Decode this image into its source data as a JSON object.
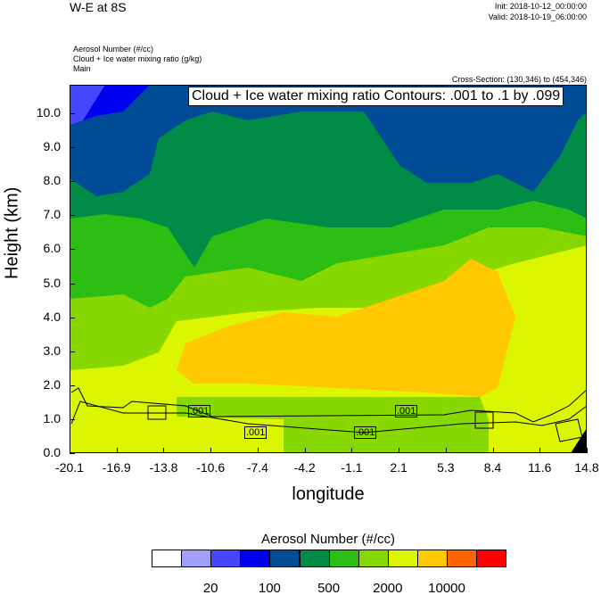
{
  "header": {
    "title": "W-E at 8S",
    "init": "Init: 2018-10-12_00:00:00",
    "valid": "Valid: 2018-10-19_06:00:00",
    "fields": [
      "Aerosol Number   (#/cc)",
      "Cloud + Ice water mixing ratio   (g/kg)",
      "Main"
    ],
    "cross_section": "Cross-Section: (130,346) to (454,346)"
  },
  "chart_data": {
    "type": "heatmap",
    "title": "W-E at 8S",
    "xlabel": "longitude",
    "ylabel": "Height (km)",
    "xlim": [
      -20.1,
      14.8
    ],
    "ylim": [
      0,
      10.8
    ],
    "x_ticks": [
      "-20.1",
      "-16.9",
      "-13.8",
      "-10.6",
      "-7.4",
      "-4.2",
      "-1.1",
      "2.1",
      "5.3",
      "8.4",
      "11.6",
      "14.8"
    ],
    "y_ticks": [
      "0.0",
      "1.0",
      "2.0",
      "3.0",
      "4.0",
      "5.0",
      "6.0",
      "7.0",
      "8.0",
      "9.0",
      "10.0"
    ],
    "contour_info": "Cloud + Ice water mixing ratio Contours: .001 to .1 by .099",
    "contour_labels": [
      ".001",
      ".001",
      ".001",
      ".001"
    ],
    "colorbar": {
      "title": "Aerosol Number  (#/cc)",
      "colors": [
        "#FFFFFF",
        "#A0A0FF",
        "#4646FF",
        "#0000F0",
        "#004B96",
        "#008C46",
        "#2DBE14",
        "#87D700",
        "#DCF500",
        "#FFC800",
        "#FF6400",
        "#FF0000"
      ],
      "labels": [
        "20",
        "100",
        "500",
        "2000",
        "10000"
      ]
    }
  }
}
